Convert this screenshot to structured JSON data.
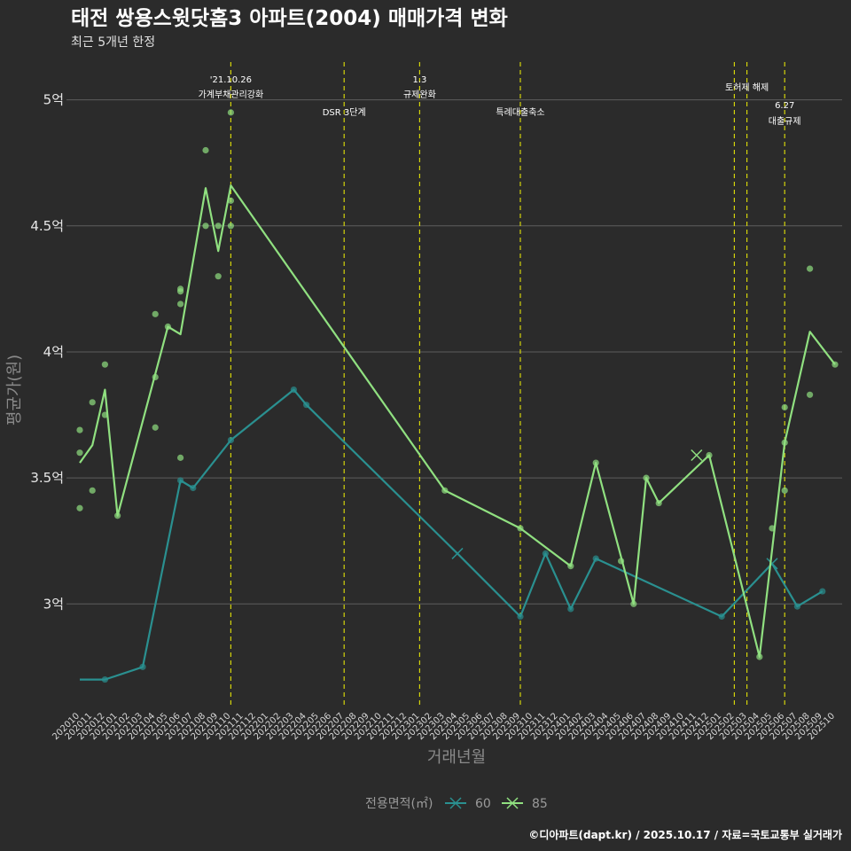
{
  "chart_data": {
    "type": "line",
    "title": "태전 쌍용스윗닷홈3 아파트(2004) 매매가격 변화",
    "subtitle": "최근 5개년 한정",
    "xlabel": "거래년월",
    "ylabel": "평균가(원)",
    "caption": "©디아파트(dapt.kr) / 2025.10.17 / 자료=국토교통부 실거래가",
    "legend_title": "전용면적(㎡)",
    "ylim": [
      2.6,
      5.15
    ],
    "yticks": [
      3,
      3.5,
      4,
      4.5,
      5
    ],
    "ytick_labels": [
      "3억",
      "3.5억",
      "4억",
      "4.5억",
      "5억"
    ],
    "categories": [
      "202010",
      "202011",
      "202012",
      "202101",
      "202102",
      "202103",
      "202104",
      "202105",
      "202106",
      "202107",
      "202108",
      "202109",
      "202110",
      "202111",
      "202112",
      "202201",
      "202202",
      "202203",
      "202204",
      "202205",
      "202206",
      "202207",
      "202208",
      "202209",
      "202210",
      "202211",
      "202212",
      "202301",
      "202302",
      "202303",
      "202304",
      "202305",
      "202306",
      "202307",
      "202308",
      "202309",
      "202310",
      "202311",
      "202312",
      "202401",
      "202402",
      "202403",
      "202404",
      "202405",
      "202406",
      "202407",
      "202408",
      "202409",
      "202410",
      "202411",
      "202412",
      "202501",
      "202502",
      "202503",
      "202504",
      "202505",
      "202506",
      "202507",
      "202508",
      "202509",
      "202510"
    ],
    "series": [
      {
        "name": "60",
        "color": "#2a9090",
        "line": [
          [
            "202010",
            2.7
          ],
          [
            "202012",
            2.7
          ],
          [
            "202103",
            2.75
          ],
          [
            "202106",
            3.49
          ],
          [
            "202107",
            3.46
          ],
          [
            "202110",
            3.65
          ],
          [
            "202203",
            3.85
          ],
          [
            "202204",
            3.79
          ],
          [
            "202304",
            3.2
          ],
          [
            "202309",
            2.95
          ],
          [
            "202311",
            3.2
          ],
          [
            "202401",
            2.98
          ],
          [
            "202403",
            3.18
          ],
          [
            "202501",
            2.95
          ],
          [
            "202505",
            3.16
          ],
          [
            "202507",
            2.99
          ],
          [
            "202509",
            3.05
          ]
        ],
        "points": [
          [
            "202012",
            2.7
          ],
          [
            "202103",
            2.75
          ],
          [
            "202106",
            3.49
          ],
          [
            "202107",
            3.46
          ],
          [
            "202110",
            3.65
          ],
          [
            "202203",
            3.85
          ],
          [
            "202204",
            3.79
          ],
          [
            "202309",
            2.95
          ],
          [
            "202311",
            3.2
          ],
          [
            "202401",
            2.98
          ],
          [
            "202403",
            3.18
          ],
          [
            "202501",
            2.95
          ],
          [
            "202507",
            2.99
          ],
          [
            "202509",
            3.05
          ]
        ],
        "crosses": [
          [
            "202304",
            3.2
          ],
          [
            "202505",
            3.16
          ]
        ]
      },
      {
        "name": "85",
        "color": "#90e080",
        "line": [
          [
            "202010",
            3.56
          ],
          [
            "202011",
            3.63
          ],
          [
            "202012",
            3.85
          ],
          [
            "202101",
            3.35
          ],
          [
            "202105",
            4.1
          ],
          [
            "202106",
            4.07
          ],
          [
            "202108",
            4.65
          ],
          [
            "202109",
            4.4
          ],
          [
            "202110",
            4.66
          ],
          [
            "202303",
            3.45
          ],
          [
            "202309",
            3.3
          ],
          [
            "202401",
            3.15
          ],
          [
            "202403",
            3.56
          ],
          [
            "202406",
            3.0
          ],
          [
            "202407",
            3.5
          ],
          [
            "202408",
            3.4
          ],
          [
            "202412",
            3.59
          ],
          [
            "202504",
            2.79
          ],
          [
            "202506",
            3.64
          ],
          [
            "202508",
            4.08
          ],
          [
            "202510",
            3.95
          ]
        ],
        "points": [
          [
            "202010",
            3.38
          ],
          [
            "202010",
            3.6
          ],
          [
            "202010",
            3.69
          ],
          [
            "202011",
            3.45
          ],
          [
            "202011",
            3.8
          ],
          [
            "202012",
            3.75
          ],
          [
            "202012",
            3.95
          ],
          [
            "202101",
            3.35
          ],
          [
            "202104",
            3.7
          ],
          [
            "202104",
            3.9
          ],
          [
            "202104",
            4.15
          ],
          [
            "202105",
            4.1
          ],
          [
            "202106",
            3.58
          ],
          [
            "202106",
            4.19
          ],
          [
            "202106",
            4.24
          ],
          [
            "202106",
            4.25
          ],
          [
            "202108",
            4.5
          ],
          [
            "202108",
            4.8
          ],
          [
            "202109",
            4.3
          ],
          [
            "202109",
            4.5
          ],
          [
            "202110",
            4.5
          ],
          [
            "202110",
            4.6
          ],
          [
            "202110",
            4.95
          ],
          [
            "202303",
            3.45
          ],
          [
            "202309",
            3.3
          ],
          [
            "202401",
            3.15
          ],
          [
            "202403",
            3.56
          ],
          [
            "202405",
            3.17
          ],
          [
            "202406",
            3.0
          ],
          [
            "202407",
            3.5
          ],
          [
            "202408",
            3.4
          ],
          [
            "202412",
            3.59
          ],
          [
            "202504",
            2.79
          ],
          [
            "202505",
            3.3
          ],
          [
            "202506",
            3.45
          ],
          [
            "202506",
            3.64
          ],
          [
            "202506",
            3.78
          ],
          [
            "202508",
            3.83
          ],
          [
            "202508",
            4.33
          ],
          [
            "202510",
            3.95
          ]
        ],
        "crosses": [
          [
            "202411",
            3.59
          ]
        ]
      }
    ],
    "events": [
      {
        "at": 12.0,
        "label1": "'21.10.26",
        "label2": "가계부채관리강화",
        "level": "top"
      },
      {
        "at": 21.0,
        "label1": "DSR 3단계",
        "label2": "",
        "level": "mid"
      },
      {
        "at": 27.0,
        "label1": "1.3",
        "label2": "규제완화",
        "level": "top"
      },
      {
        "at": 35.0,
        "label1": "특례대출축소",
        "label2": "",
        "level": "mid"
      },
      {
        "at": 52.0,
        "label1": "",
        "label2": "",
        "level": "none"
      },
      {
        "at": 53.0,
        "label1": "토허제 해제",
        "label2": "",
        "level": "top2"
      },
      {
        "at": 56.0,
        "label1": "6.27",
        "label2": "대출규제",
        "level": "low"
      }
    ]
  },
  "legend": {
    "items": [
      "60",
      "85"
    ]
  },
  "colors": {
    "background": "#2b2b2b",
    "grid": "#5e5e5e",
    "event_line": "#d4d40a"
  }
}
